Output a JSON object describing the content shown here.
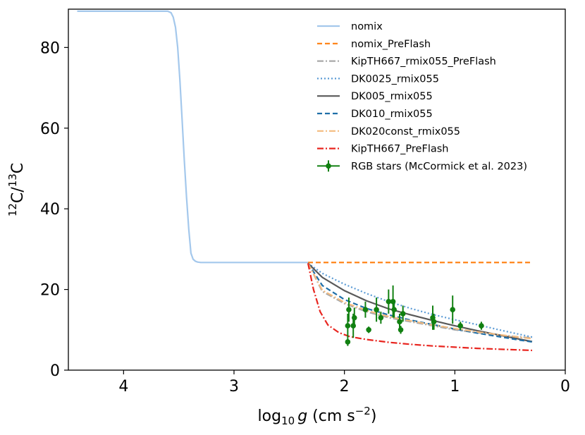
{
  "chart_data": {
    "type": "line",
    "title": "",
    "xlabel": "log10 g (cm s^-2)",
    "xlabel_parts": {
      "pre": "log",
      "sub": "10",
      "var": "g",
      "unit_open": " (cm s",
      "sup": "−2",
      "unit_close": ")"
    },
    "ylabel": "12C/13C",
    "ylabel_parts": {
      "sup1": "12",
      "t1": "C/",
      "sup2": "13",
      "t2": "C"
    },
    "xlim": [
      4.5,
      0
    ],
    "ylim": [
      0,
      89.5
    ],
    "xticks": [
      4,
      3,
      2,
      1,
      0
    ],
    "xtick_labels": [
      "4",
      "3",
      "2",
      "1",
      "0"
    ],
    "yticks": [
      0,
      20,
      40,
      60,
      80
    ],
    "ytick_labels": [
      "0",
      "20",
      "40",
      "60",
      "80"
    ],
    "grid": false,
    "legend_position": "top-right",
    "series": [
      {
        "name": "nomix",
        "color": "#a4c8ec",
        "dash": "solid",
        "x": [
          4.42,
          3.6,
          3.57,
          3.55,
          3.53,
          3.51,
          3.49,
          3.47,
          3.45,
          3.43,
          3.41,
          3.39,
          3.37,
          3.35,
          3.33,
          3.3,
          3.0,
          2.6,
          2.33
        ],
        "y": [
          89,
          89,
          88.6,
          87.5,
          85,
          80,
          72,
          62,
          52,
          43,
          35,
          29,
          27.5,
          27,
          26.8,
          26.7,
          26.7,
          26.7,
          26.7
        ]
      },
      {
        "name": "nomix_PreFlash",
        "color": "#ff7f0e",
        "dash": "dashed",
        "x": [
          2.33,
          0.3
        ],
        "y": [
          26.7,
          26.7
        ]
      },
      {
        "name": "KipTH667_rmix055_PreFlash",
        "color": "#a8a8a8",
        "dash": "dashdot",
        "x": [
          2.33,
          2.2,
          2.0,
          1.8,
          1.6,
          1.4,
          1.2,
          1.0,
          0.8,
          0.6,
          0.4,
          0.3
        ],
        "y": [
          26.5,
          19.5,
          16.5,
          14.5,
          13,
          12,
          11,
          10,
          9.3,
          8.7,
          8.2,
          8.0
        ]
      },
      {
        "name": "DK0025_rmix055",
        "color": "#5b9bd5",
        "dash": "dotted",
        "x": [
          2.33,
          2.2,
          2.0,
          1.8,
          1.6,
          1.4,
          1.2,
          1.0,
          0.8,
          0.6,
          0.4,
          0.3
        ],
        "y": [
          26.5,
          24,
          21.3,
          19,
          17,
          15.3,
          13.8,
          12.5,
          11.3,
          10,
          8.8,
          8.2
        ]
      },
      {
        "name": "DK005_rmix055",
        "color": "#595959",
        "dash": "solid",
        "x": [
          2.33,
          2.2,
          2.0,
          1.8,
          1.6,
          1.4,
          1.2,
          1.0,
          0.8,
          0.6,
          0.4,
          0.3
        ],
        "y": [
          26.5,
          23,
          19.7,
          17.2,
          15.2,
          13.7,
          12.3,
          11,
          9.8,
          8.7,
          7.6,
          7.1
        ]
      },
      {
        "name": "DK010_rmix055",
        "color": "#1f6fa8",
        "dash": "dashed",
        "x": [
          2.33,
          2.2,
          2.0,
          1.8,
          1.6,
          1.4,
          1.2,
          1.0,
          0.8,
          0.6,
          0.4,
          0.3
        ],
        "y": [
          26.5,
          21,
          17.5,
          15.3,
          13.7,
          12.4,
          11.3,
          10.2,
          9.2,
          8.3,
          7.4,
          7.0
        ]
      },
      {
        "name": "DK020const_rmix055",
        "color": "#f4bb7f",
        "dash": "dashdot",
        "x": [
          2.33,
          2.2,
          2.0,
          1.8,
          1.6,
          1.4,
          1.2,
          1.0,
          0.8,
          0.6,
          0.4,
          0.3
        ],
        "y": [
          26.5,
          19.8,
          16.8,
          14.8,
          13.3,
          12.2,
          11.2,
          10.3,
          9.5,
          8.8,
          8.1,
          7.8
        ]
      },
      {
        "name": "KipTH667_PreFlash",
        "color": "#e8251f",
        "dash": "dashdot",
        "x": [
          2.33,
          2.28,
          2.22,
          2.15,
          2.05,
          1.95,
          1.8,
          1.6,
          1.4,
          1.2,
          1.0,
          0.8,
          0.6,
          0.3
        ],
        "y": [
          26.5,
          20,
          14.5,
          11.2,
          9.3,
          8.3,
          7.6,
          6.9,
          6.4,
          6.0,
          5.7,
          5.4,
          5.2,
          4.9
        ]
      }
    ],
    "errorbar_series": {
      "name": "RGB stars (McCormick et al. 2023)",
      "color": "#118011",
      "points": [
        {
          "x": 1.97,
          "y": 7,
          "err": 1
        },
        {
          "x": 1.97,
          "y": 11,
          "err": 3
        },
        {
          "x": 1.96,
          "y": 15,
          "err": 3
        },
        {
          "x": 1.92,
          "y": 11,
          "err": 3
        },
        {
          "x": 1.91,
          "y": 13,
          "err": 2.5
        },
        {
          "x": 1.81,
          "y": 15,
          "err": 2
        },
        {
          "x": 1.78,
          "y": 10,
          "err": 0.8
        },
        {
          "x": 1.71,
          "y": 15,
          "err": 3
        },
        {
          "x": 1.67,
          "y": 13,
          "err": 1.5
        },
        {
          "x": 1.6,
          "y": 17,
          "err": 3
        },
        {
          "x": 1.56,
          "y": 17,
          "err": 4
        },
        {
          "x": 1.55,
          "y": 15,
          "err": 2
        },
        {
          "x": 1.5,
          "y": 12,
          "err": 2
        },
        {
          "x": 1.49,
          "y": 10,
          "err": 1
        },
        {
          "x": 1.47,
          "y": 14,
          "err": 2
        },
        {
          "x": 1.2,
          "y": 13,
          "err": 3
        },
        {
          "x": 1.19,
          "y": 12,
          "err": 2
        },
        {
          "x": 1.02,
          "y": 15,
          "err": 3.5
        },
        {
          "x": 0.95,
          "y": 11,
          "err": 1
        },
        {
          "x": 0.76,
          "y": 11,
          "err": 1
        }
      ]
    }
  }
}
